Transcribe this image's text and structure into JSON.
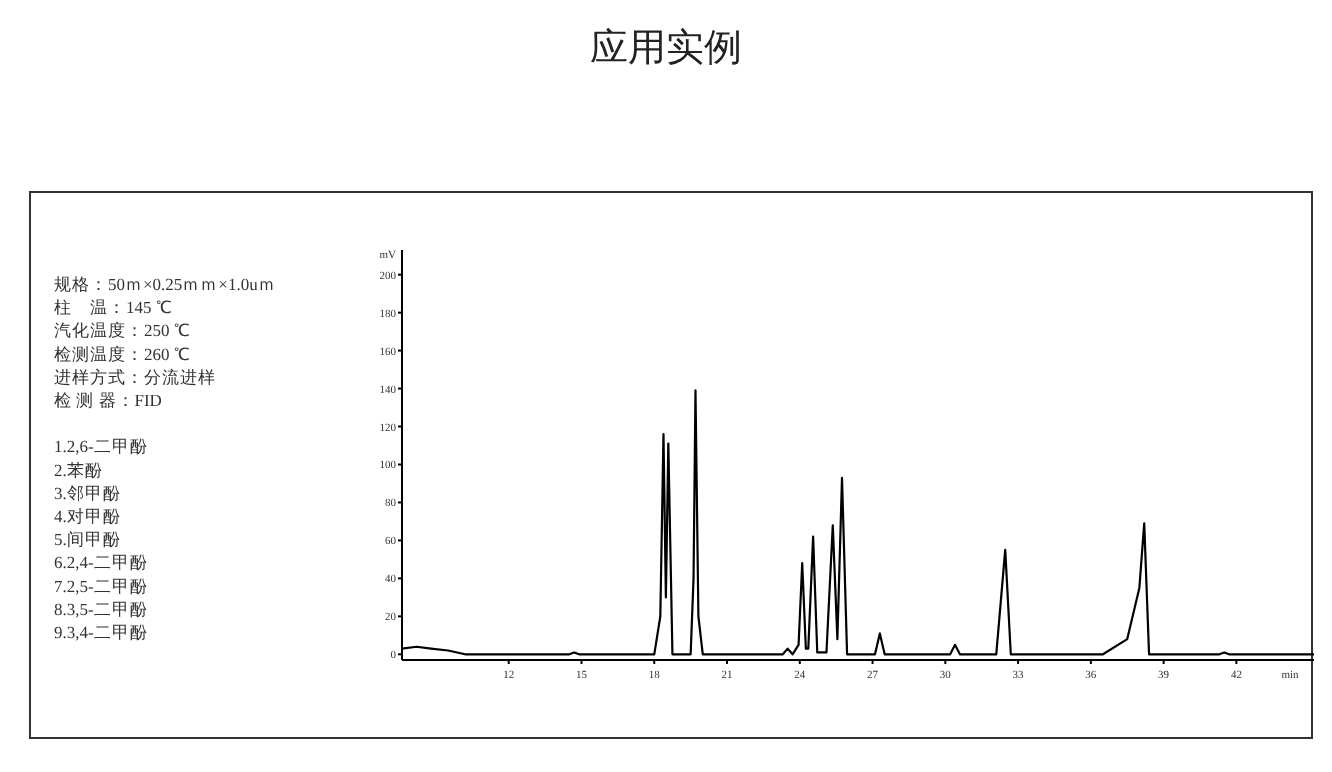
{
  "chart_data": {
    "type": "line",
    "title": "应用实例",
    "xlabel": "min",
    "ylabel": "mV",
    "color": "#000000",
    "grid": false,
    "marker": "none",
    "x": [
      7.6,
      8.2,
      8.8,
      9.5,
      10.2,
      11,
      14.5,
      14.7,
      14.9,
      18.0,
      18.25,
      18.38,
      18.48,
      18.58,
      18.75,
      19.5,
      19.62,
      19.7,
      19.82,
      20.0,
      23.3,
      23.5,
      23.7,
      23.95,
      24.1,
      24.25,
      24.35,
      24.55,
      24.72,
      25.1,
      25.36,
      25.55,
      25.74,
      25.95,
      27.1,
      27.3,
      27.5,
      30.2,
      30.4,
      30.6,
      32.1,
      32.47,
      32.7,
      36.5,
      37.5,
      38.0,
      38.2,
      38.4,
      38.8,
      41.3,
      41.5,
      41.7,
      45.2
    ],
    "values": [
      3,
      4,
      3,
      2,
      0,
      0,
      0,
      1,
      0,
      0,
      20,
      116,
      30,
      111,
      0,
      0,
      40,
      139,
      20,
      0,
      0,
      3,
      0,
      5,
      48,
      3,
      3,
      62,
      1,
      1,
      68,
      8,
      93,
      0,
      0,
      11,
      0,
      0,
      5,
      0,
      0,
      55,
      0,
      0,
      8,
      35,
      69,
      0,
      0,
      0,
      1,
      0,
      0
    ],
    "xlim": [
      7.6,
      45.2
    ],
    "ylim": [
      -3,
      213
    ],
    "xticks": [
      12,
      15,
      18,
      21,
      24,
      27,
      30,
      33,
      36,
      39,
      42
    ],
    "yticks": [
      0,
      20,
      40,
      60,
      80,
      100,
      120,
      140,
      160,
      180,
      200
    ],
    "annotations": [
      "规格：50ｍ×0.25ｍｍ×1.0uｍ",
      "柱　温：145 ℃",
      "汽化温度：250 ℃",
      "检测温度：260 ℃",
      "进样方式：分流进样",
      "检 测 器：FID",
      "1.2,6-二甲酚",
      "2.苯酚",
      "3.邻甲酚",
      "4.对甲酚",
      "5.间甲酚",
      "6.2,4-二甲酚",
      "7.2,5-二甲酚",
      "8.3,5-二甲酚",
      "9.3,4-二甲酚"
    ]
  }
}
